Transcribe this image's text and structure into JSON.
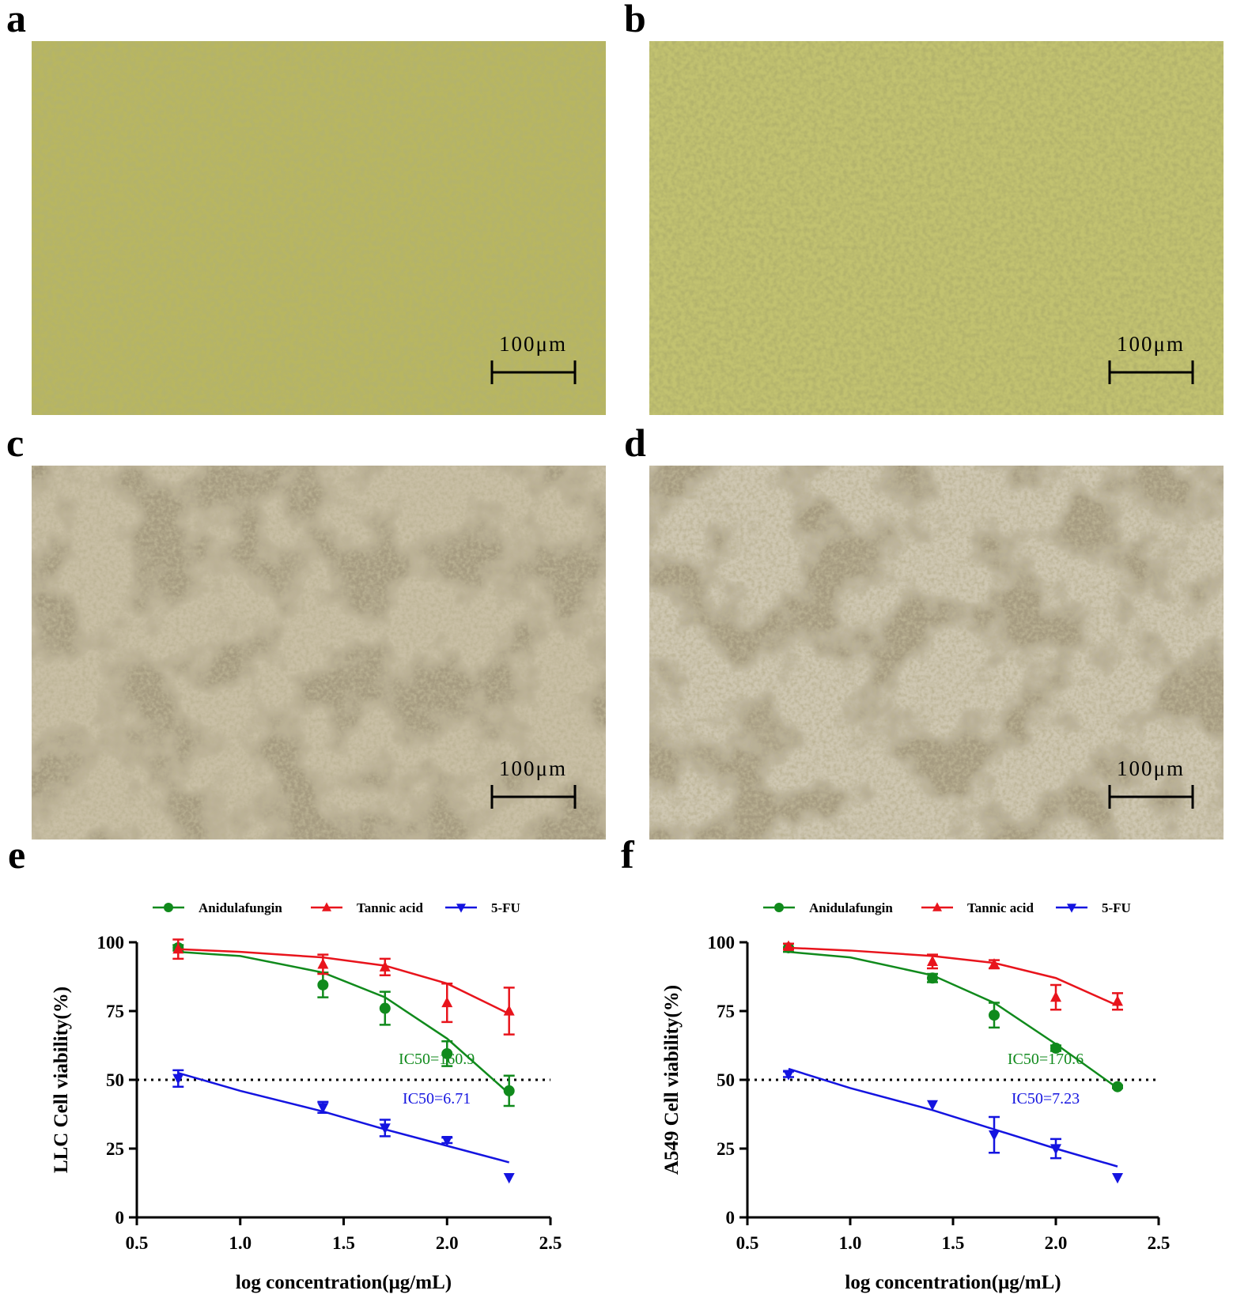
{
  "panels": [
    {
      "label": "a",
      "scale_bar": "100μm"
    },
    {
      "label": "b",
      "scale_bar": "100μm"
    },
    {
      "label": "c",
      "scale_bar": "100μm"
    },
    {
      "label": "d",
      "scale_bar": "100μm"
    }
  ],
  "chart_data": [
    {
      "type": "line",
      "panel_label": "e",
      "x_label": "log concentration(μg/mL)",
      "y_label": "LLC Cell viability(%)",
      "xlim": [
        0.5,
        2.5
      ],
      "xticks": [
        0.5,
        {
          "value": 1,
          "label": "1.0"
        },
        1.5,
        {
          "value": 2,
          "label": "2.0"
        },
        2.5
      ],
      "ylim": [
        0,
        100
      ],
      "yticks": [
        0,
        25,
        50,
        75,
        100
      ],
      "x": [
        0.7,
        1.4,
        1.7,
        2.0,
        2.3
      ],
      "fit_x": [
        0.7,
        1.0,
        1.4,
        1.7,
        2.0,
        2.3
      ],
      "reference_line": 50,
      "series": [
        {
          "name": "Anidulafungin",
          "color": "#108a1c",
          "marker": "circle",
          "values": [
            98,
            84.5,
            76,
            59.5,
            46
          ],
          "errors": [
            1,
            4.5,
            6,
            4.5,
            5.5
          ],
          "fit_values": [
            96.5,
            95,
            89,
            80,
            65,
            45
          ]
        },
        {
          "name": "Tannic acid",
          "color": "#e8141c",
          "marker": "triangle-up",
          "values": [
            97.5,
            92,
            91,
            78,
            75
          ],
          "errors": [
            3.5,
            3.5,
            3,
            7,
            8.5
          ],
          "fit_values": [
            97.5,
            96.5,
            94.5,
            91.5,
            85,
            74
          ]
        },
        {
          "name": "5-FU",
          "color": "#1414e0",
          "marker": "triangle-down",
          "values": [
            50.5,
            40,
            32.5,
            28,
            14.5
          ],
          "errors": [
            3,
            2,
            3,
            1,
            0
          ],
          "fit_values": [
            52.5,
            46,
            38.5,
            32,
            26,
            20
          ]
        }
      ],
      "annotations": [
        {
          "text": "IC50=160.9",
          "color": "#108a1c"
        },
        {
          "text": "IC50=6.71",
          "color": "#1414e0"
        }
      ]
    },
    {
      "type": "line",
      "panel_label": "f",
      "x_label": "log concentration(μg/mL)",
      "y_label": "A549 Cell viability(%)",
      "xlim": [
        0.5,
        2.5
      ],
      "xticks": [
        0.5,
        {
          "value": 1,
          "label": "1.0"
        },
        1.5,
        {
          "value": 2,
          "label": "2.0"
        },
        2.5
      ],
      "ylim": [
        0,
        100
      ],
      "yticks": [
        0,
        25,
        50,
        75,
        100
      ],
      "x": [
        0.7,
        1.4,
        1.7,
        2.0,
        2.3
      ],
      "fit_x": [
        0.7,
        1.0,
        1.4,
        1.7,
        2.0,
        2.3
      ],
      "reference_line": 50,
      "series": [
        {
          "name": "Anidulafungin",
          "color": "#108a1c",
          "marker": "circle",
          "values": [
            98,
            87,
            73.5,
            61.5,
            47.5
          ],
          "errors": [
            1.5,
            1.5,
            4.5,
            1,
            0.5
          ],
          "fit_values": [
            96.5,
            94.5,
            88,
            78,
            63,
            47
          ]
        },
        {
          "name": "Tannic acid",
          "color": "#e8141c",
          "marker": "triangle-up",
          "values": [
            98.5,
            93,
            92,
            80,
            78.5
          ],
          "errors": [
            1,
            2.5,
            1.5,
            4.5,
            3
          ],
          "fit_values": [
            98,
            97,
            95,
            92.5,
            87,
            77
          ]
        },
        {
          "name": "5-FU",
          "color": "#1414e0",
          "marker": "triangle-down",
          "values": [
            52,
            41,
            30,
            25,
            14.5
          ],
          "errors": [
            1,
            0,
            6.5,
            3.5,
            0
          ],
          "fit_values": [
            54,
            47,
            39,
            32,
            25,
            18.5
          ]
        }
      ],
      "annotations": [
        {
          "text": "IC50=170.6",
          "color": "#108a1c"
        },
        {
          "text": "IC50=7.23",
          "color": "#1414e0"
        }
      ]
    }
  ]
}
